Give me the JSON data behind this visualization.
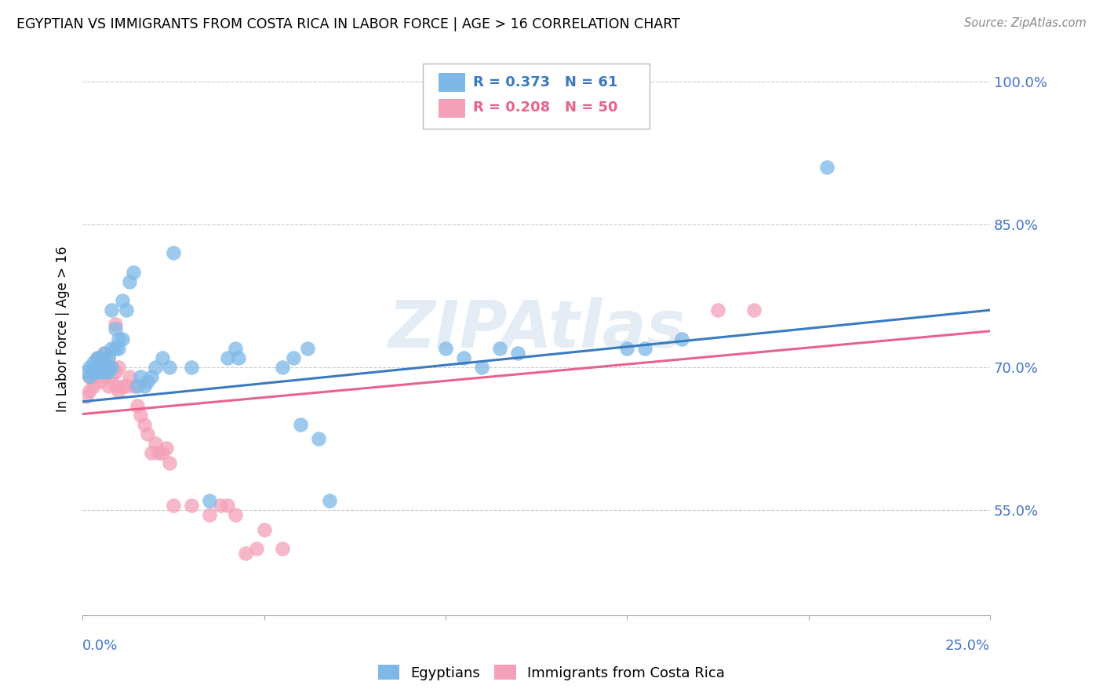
{
  "title": "EGYPTIAN VS IMMIGRANTS FROM COSTA RICA IN LABOR FORCE | AGE > 16 CORRELATION CHART",
  "source": "Source: ZipAtlas.com",
  "ylabel": "In Labor Force | Age > 16",
  "ytick_labels": [
    "100.0%",
    "85.0%",
    "70.0%",
    "55.0%"
  ],
  "ytick_values": [
    1.0,
    0.85,
    0.7,
    0.55
  ],
  "xmin": 0.0,
  "xmax": 0.25,
  "ymin": 0.44,
  "ymax": 1.04,
  "legend_blue_r": "0.373",
  "legend_blue_n": "61",
  "legend_pink_r": "0.208",
  "legend_pink_n": "50",
  "blue_color": "#7db8e8",
  "pink_color": "#f4a0b8",
  "blue_line_color": "#3a7abf",
  "pink_line_color": "#e8638a",
  "watermark": "ZIPAtlas",
  "blue_scatter_x": [
    0.001,
    0.002,
    0.002,
    0.003,
    0.003,
    0.003,
    0.004,
    0.004,
    0.004,
    0.005,
    0.005,
    0.005,
    0.005,
    0.006,
    0.006,
    0.006,
    0.006,
    0.007,
    0.007,
    0.007,
    0.008,
    0.008,
    0.008,
    0.009,
    0.009,
    0.01,
    0.01,
    0.011,
    0.011,
    0.012,
    0.013,
    0.014,
    0.015,
    0.016,
    0.017,
    0.018,
    0.019,
    0.02,
    0.022,
    0.024,
    0.025,
    0.03,
    0.035,
    0.04,
    0.042,
    0.043,
    0.055,
    0.058,
    0.06,
    0.062,
    0.065,
    0.068,
    0.1,
    0.105,
    0.11,
    0.115,
    0.12,
    0.15,
    0.155,
    0.165,
    0.205
  ],
  "blue_scatter_y": [
    0.695,
    0.69,
    0.7,
    0.7,
    0.695,
    0.705,
    0.695,
    0.7,
    0.71,
    0.695,
    0.7,
    0.705,
    0.71,
    0.695,
    0.7,
    0.705,
    0.715,
    0.695,
    0.7,
    0.71,
    0.7,
    0.72,
    0.76,
    0.72,
    0.74,
    0.72,
    0.73,
    0.73,
    0.77,
    0.76,
    0.79,
    0.8,
    0.68,
    0.69,
    0.68,
    0.685,
    0.69,
    0.7,
    0.71,
    0.7,
    0.82,
    0.7,
    0.56,
    0.71,
    0.72,
    0.71,
    0.7,
    0.71,
    0.64,
    0.72,
    0.625,
    0.56,
    0.72,
    0.71,
    0.7,
    0.72,
    0.715,
    0.72,
    0.72,
    0.73,
    0.91
  ],
  "pink_scatter_x": [
    0.001,
    0.002,
    0.002,
    0.003,
    0.003,
    0.003,
    0.004,
    0.004,
    0.005,
    0.005,
    0.005,
    0.006,
    0.006,
    0.006,
    0.007,
    0.007,
    0.007,
    0.008,
    0.008,
    0.009,
    0.009,
    0.009,
    0.01,
    0.01,
    0.011,
    0.012,
    0.013,
    0.014,
    0.015,
    0.016,
    0.017,
    0.018,
    0.019,
    0.02,
    0.021,
    0.022,
    0.023,
    0.024,
    0.025,
    0.03,
    0.035,
    0.038,
    0.04,
    0.042,
    0.045,
    0.048,
    0.05,
    0.055,
    0.175,
    0.185
  ],
  "pink_scatter_y": [
    0.67,
    0.675,
    0.69,
    0.68,
    0.69,
    0.695,
    0.7,
    0.71,
    0.685,
    0.695,
    0.71,
    0.69,
    0.7,
    0.715,
    0.68,
    0.695,
    0.71,
    0.69,
    0.7,
    0.68,
    0.695,
    0.745,
    0.675,
    0.7,
    0.68,
    0.68,
    0.69,
    0.68,
    0.66,
    0.65,
    0.64,
    0.63,
    0.61,
    0.62,
    0.61,
    0.61,
    0.615,
    0.6,
    0.555,
    0.555,
    0.545,
    0.555,
    0.555,
    0.545,
    0.505,
    0.51,
    0.53,
    0.51,
    0.76,
    0.76
  ],
  "blue_line_y0": 0.664,
  "blue_line_y1": 0.76,
  "pink_line_y0": 0.651,
  "pink_line_y1": 0.738
}
